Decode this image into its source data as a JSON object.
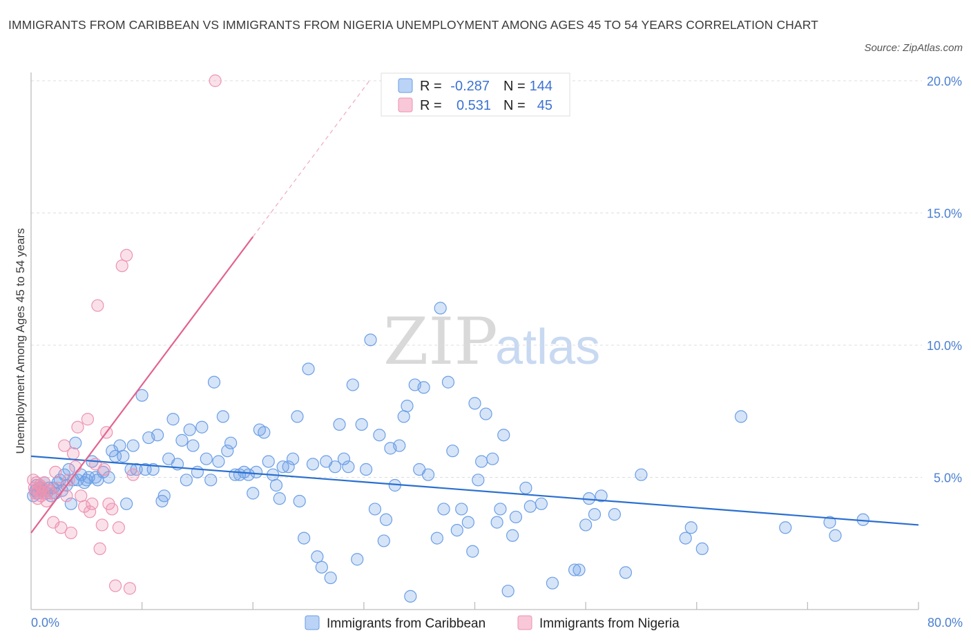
{
  "title": "IMMIGRANTS FROM CARIBBEAN VS IMMIGRANTS FROM NIGERIA UNEMPLOYMENT AMONG AGES 45 TO 54 YEARS CORRELATION CHART",
  "source": "Source: ZipAtlas.com",
  "watermark": {
    "zip": "ZIP",
    "atlas": "atlas"
  },
  "legend": {
    "rows": [
      {
        "r_label": "R =",
        "r_value": "-0.287",
        "n_label": "N =",
        "n_value": "144"
      },
      {
        "r_label": "R =",
        "r_value": "0.531",
        "n_label": "N =",
        "n_value": "45"
      }
    ]
  },
  "chart_data": {
    "type": "scatter",
    "title": "IMMIGRANTS FROM CARIBBEAN VS IMMIGRANTS FROM NIGERIA UNEMPLOYMENT AMONG AGES 45 TO 54 YEARS CORRELATION CHART",
    "xlabel": "",
    "ylabel": "Unemployment Among Ages 45 to 54 years",
    "xlim": [
      0,
      80
    ],
    "ylim": [
      0,
      20
    ],
    "x_tick_labels": [
      "0.0%",
      "80.0%"
    ],
    "y_ticks": [
      5,
      10,
      15,
      20
    ],
    "y_tick_labels": [
      "5.0%",
      "10.0%",
      "15.0%",
      "20.0%"
    ],
    "colors": {
      "caribbean": "#6a9ee6",
      "nigeria": "#ee92b1",
      "caribbean_line": "#2a6fcf",
      "nigeria_line": "#e2638f"
    },
    "series": [
      {
        "name": "Immigrants from Caribbean",
        "R": -0.287,
        "N": 144,
        "trend": {
          "x0": 0,
          "y0": 5.8,
          "x1": 80,
          "y1": 3.2
        },
        "points": [
          [
            0.2,
            4.3
          ],
          [
            0.4,
            4.5
          ],
          [
            0.5,
            4.7
          ],
          [
            0.6,
            4.4
          ],
          [
            0.8,
            4.6
          ],
          [
            1.0,
            4.5
          ],
          [
            1.2,
            4.8
          ],
          [
            1.4,
            4.4
          ],
          [
            1.6,
            4.6
          ],
          [
            1.8,
            4.3
          ],
          [
            2.0,
            4.6
          ],
          [
            2.2,
            4.4
          ],
          [
            2.4,
            4.8
          ],
          [
            2.6,
            4.9
          ],
          [
            2.8,
            4.5
          ],
          [
            3.0,
            5.1
          ],
          [
            3.2,
            4.7
          ],
          [
            3.4,
            5.3
          ],
          [
            3.6,
            4.0
          ],
          [
            3.8,
            4.9
          ],
          [
            4.0,
            6.3
          ],
          [
            4.2,
            4.9
          ],
          [
            4.5,
            5.1
          ],
          [
            4.8,
            4.8
          ],
          [
            5.0,
            4.9
          ],
          [
            5.2,
            5.0
          ],
          [
            5.5,
            5.6
          ],
          [
            5.8,
            5.0
          ],
          [
            6.0,
            4.9
          ],
          [
            6.5,
            5.2
          ],
          [
            7.0,
            5.0
          ],
          [
            7.3,
            6.0
          ],
          [
            7.6,
            5.8
          ],
          [
            8.0,
            6.2
          ],
          [
            8.3,
            5.8
          ],
          [
            8.6,
            4.0
          ],
          [
            9.0,
            5.3
          ],
          [
            9.2,
            6.2
          ],
          [
            9.5,
            5.3
          ],
          [
            10.0,
            8.1
          ],
          [
            10.3,
            5.3
          ],
          [
            10.6,
            6.5
          ],
          [
            11.0,
            5.3
          ],
          [
            11.4,
            6.6
          ],
          [
            11.8,
            4.1
          ],
          [
            12.0,
            4.3
          ],
          [
            12.4,
            5.7
          ],
          [
            12.8,
            7.2
          ],
          [
            13.2,
            5.5
          ],
          [
            13.6,
            6.4
          ],
          [
            14.0,
            4.9
          ],
          [
            14.3,
            6.8
          ],
          [
            14.6,
            6.2
          ],
          [
            15.0,
            5.2
          ],
          [
            15.4,
            6.9
          ],
          [
            15.8,
            5.7
          ],
          [
            16.2,
            4.9
          ],
          [
            16.5,
            8.6
          ],
          [
            16.9,
            5.6
          ],
          [
            17.3,
            7.3
          ],
          [
            17.7,
            6.0
          ],
          [
            18.0,
            6.3
          ],
          [
            18.4,
            5.1
          ],
          [
            18.8,
            5.1
          ],
          [
            19.2,
            5.2
          ],
          [
            19.6,
            5.1
          ],
          [
            20.0,
            4.4
          ],
          [
            20.3,
            5.2
          ],
          [
            20.6,
            6.8
          ],
          [
            21.0,
            6.7
          ],
          [
            21.4,
            5.6
          ],
          [
            21.8,
            5.1
          ],
          [
            22.1,
            4.7
          ],
          [
            22.4,
            4.2
          ],
          [
            22.7,
            5.4
          ],
          [
            23.2,
            5.4
          ],
          [
            23.6,
            5.7
          ],
          [
            24.0,
            7.3
          ],
          [
            24.2,
            4.1
          ],
          [
            24.6,
            2.7
          ],
          [
            25.0,
            9.1
          ],
          [
            25.4,
            5.5
          ],
          [
            25.8,
            2.0
          ],
          [
            26.2,
            1.6
          ],
          [
            26.6,
            5.6
          ],
          [
            27.0,
            1.2
          ],
          [
            27.4,
            5.4
          ],
          [
            27.8,
            7.0
          ],
          [
            28.2,
            5.7
          ],
          [
            28.6,
            5.4
          ],
          [
            29.0,
            8.5
          ],
          [
            29.4,
            1.9
          ],
          [
            29.8,
            7.0
          ],
          [
            30.2,
            5.3
          ],
          [
            30.6,
            10.2
          ],
          [
            31.0,
            3.8
          ],
          [
            31.4,
            6.6
          ],
          [
            31.8,
            2.6
          ],
          [
            32.0,
            3.4
          ],
          [
            32.4,
            6.1
          ],
          [
            32.8,
            4.7
          ],
          [
            33.2,
            6.2
          ],
          [
            33.6,
            7.3
          ],
          [
            33.9,
            7.7
          ],
          [
            34.2,
            0.5
          ],
          [
            34.6,
            8.5
          ],
          [
            35.0,
            5.3
          ],
          [
            35.4,
            8.4
          ],
          [
            35.8,
            5.1
          ],
          [
            36.6,
            2.7
          ],
          [
            36.9,
            11.4
          ],
          [
            37.2,
            3.8
          ],
          [
            37.6,
            8.6
          ],
          [
            38.0,
            6.0
          ],
          [
            38.4,
            3.0
          ],
          [
            38.8,
            3.8
          ],
          [
            39.4,
            3.3
          ],
          [
            39.8,
            2.2
          ],
          [
            40.0,
            7.8
          ],
          [
            40.3,
            4.9
          ],
          [
            40.6,
            5.6
          ],
          [
            41.0,
            7.4
          ],
          [
            41.6,
            5.7
          ],
          [
            42.0,
            3.3
          ],
          [
            42.3,
            3.8
          ],
          [
            42.6,
            6.6
          ],
          [
            43.0,
            0.7
          ],
          [
            43.4,
            2.8
          ],
          [
            43.7,
            3.5
          ],
          [
            44.6,
            4.6
          ],
          [
            45.0,
            3.9
          ],
          [
            46.0,
            4.0
          ],
          [
            47.0,
            1.0
          ],
          [
            49.0,
            1.5
          ],
          [
            49.4,
            1.5
          ],
          [
            50.0,
            3.2
          ],
          [
            50.3,
            4.2
          ],
          [
            50.8,
            3.6
          ],
          [
            51.4,
            4.3
          ],
          [
            52.6,
            3.6
          ],
          [
            53.6,
            1.4
          ],
          [
            55.0,
            5.1
          ],
          [
            59.0,
            2.7
          ],
          [
            59.5,
            3.1
          ],
          [
            60.5,
            2.3
          ],
          [
            64.0,
            7.3
          ],
          [
            68.0,
            3.1
          ],
          [
            72.0,
            3.3
          ],
          [
            72.5,
            2.8
          ],
          [
            75.0,
            3.4
          ]
        ]
      },
      {
        "name": "Immigrants from Nigeria",
        "R": 0.531,
        "N": 45,
        "trend": {
          "x0": 0,
          "y0": 2.9,
          "x1": 20,
          "y1": 14.1,
          "x_dashed_end": 30.5,
          "y_dashed_end": 20.0
        },
        "points": [
          [
            0.2,
            4.9
          ],
          [
            0.3,
            4.6
          ],
          [
            0.4,
            4.4
          ],
          [
            0.5,
            4.8
          ],
          [
            0.6,
            4.2
          ],
          [
            0.7,
            4.5
          ],
          [
            0.8,
            4.7
          ],
          [
            0.9,
            4.3
          ],
          [
            1.0,
            4.6
          ],
          [
            1.1,
            4.4
          ],
          [
            1.2,
            4.8
          ],
          [
            1.4,
            4.1
          ],
          [
            1.6,
            4.5
          ],
          [
            1.8,
            4.4
          ],
          [
            2.0,
            3.3
          ],
          [
            2.2,
            5.2
          ],
          [
            2.4,
            4.6
          ],
          [
            2.7,
            3.1
          ],
          [
            3.0,
            6.2
          ],
          [
            3.2,
            4.3
          ],
          [
            3.4,
            4.9
          ],
          [
            3.6,
            2.9
          ],
          [
            3.8,
            5.9
          ],
          [
            4.0,
            5.4
          ],
          [
            4.2,
            6.9
          ],
          [
            4.5,
            4.3
          ],
          [
            4.8,
            3.9
          ],
          [
            5.1,
            7.2
          ],
          [
            5.3,
            3.7
          ],
          [
            5.5,
            4.0
          ],
          [
            5.8,
            5.5
          ],
          [
            6.0,
            11.5
          ],
          [
            6.2,
            2.3
          ],
          [
            6.4,
            3.2
          ],
          [
            6.6,
            5.3
          ],
          [
            6.8,
            6.7
          ],
          [
            7.0,
            4.0
          ],
          [
            7.3,
            3.8
          ],
          [
            7.6,
            0.9
          ],
          [
            7.9,
            3.1
          ],
          [
            8.2,
            13.0
          ],
          [
            8.6,
            13.4
          ],
          [
            8.9,
            0.8
          ],
          [
            9.2,
            5.1
          ],
          [
            16.6,
            20.0
          ]
        ]
      }
    ]
  },
  "bottom_legend": {
    "caribbean": "Immigrants from Caribbean",
    "nigeria": "Immigrants from Nigeria"
  }
}
